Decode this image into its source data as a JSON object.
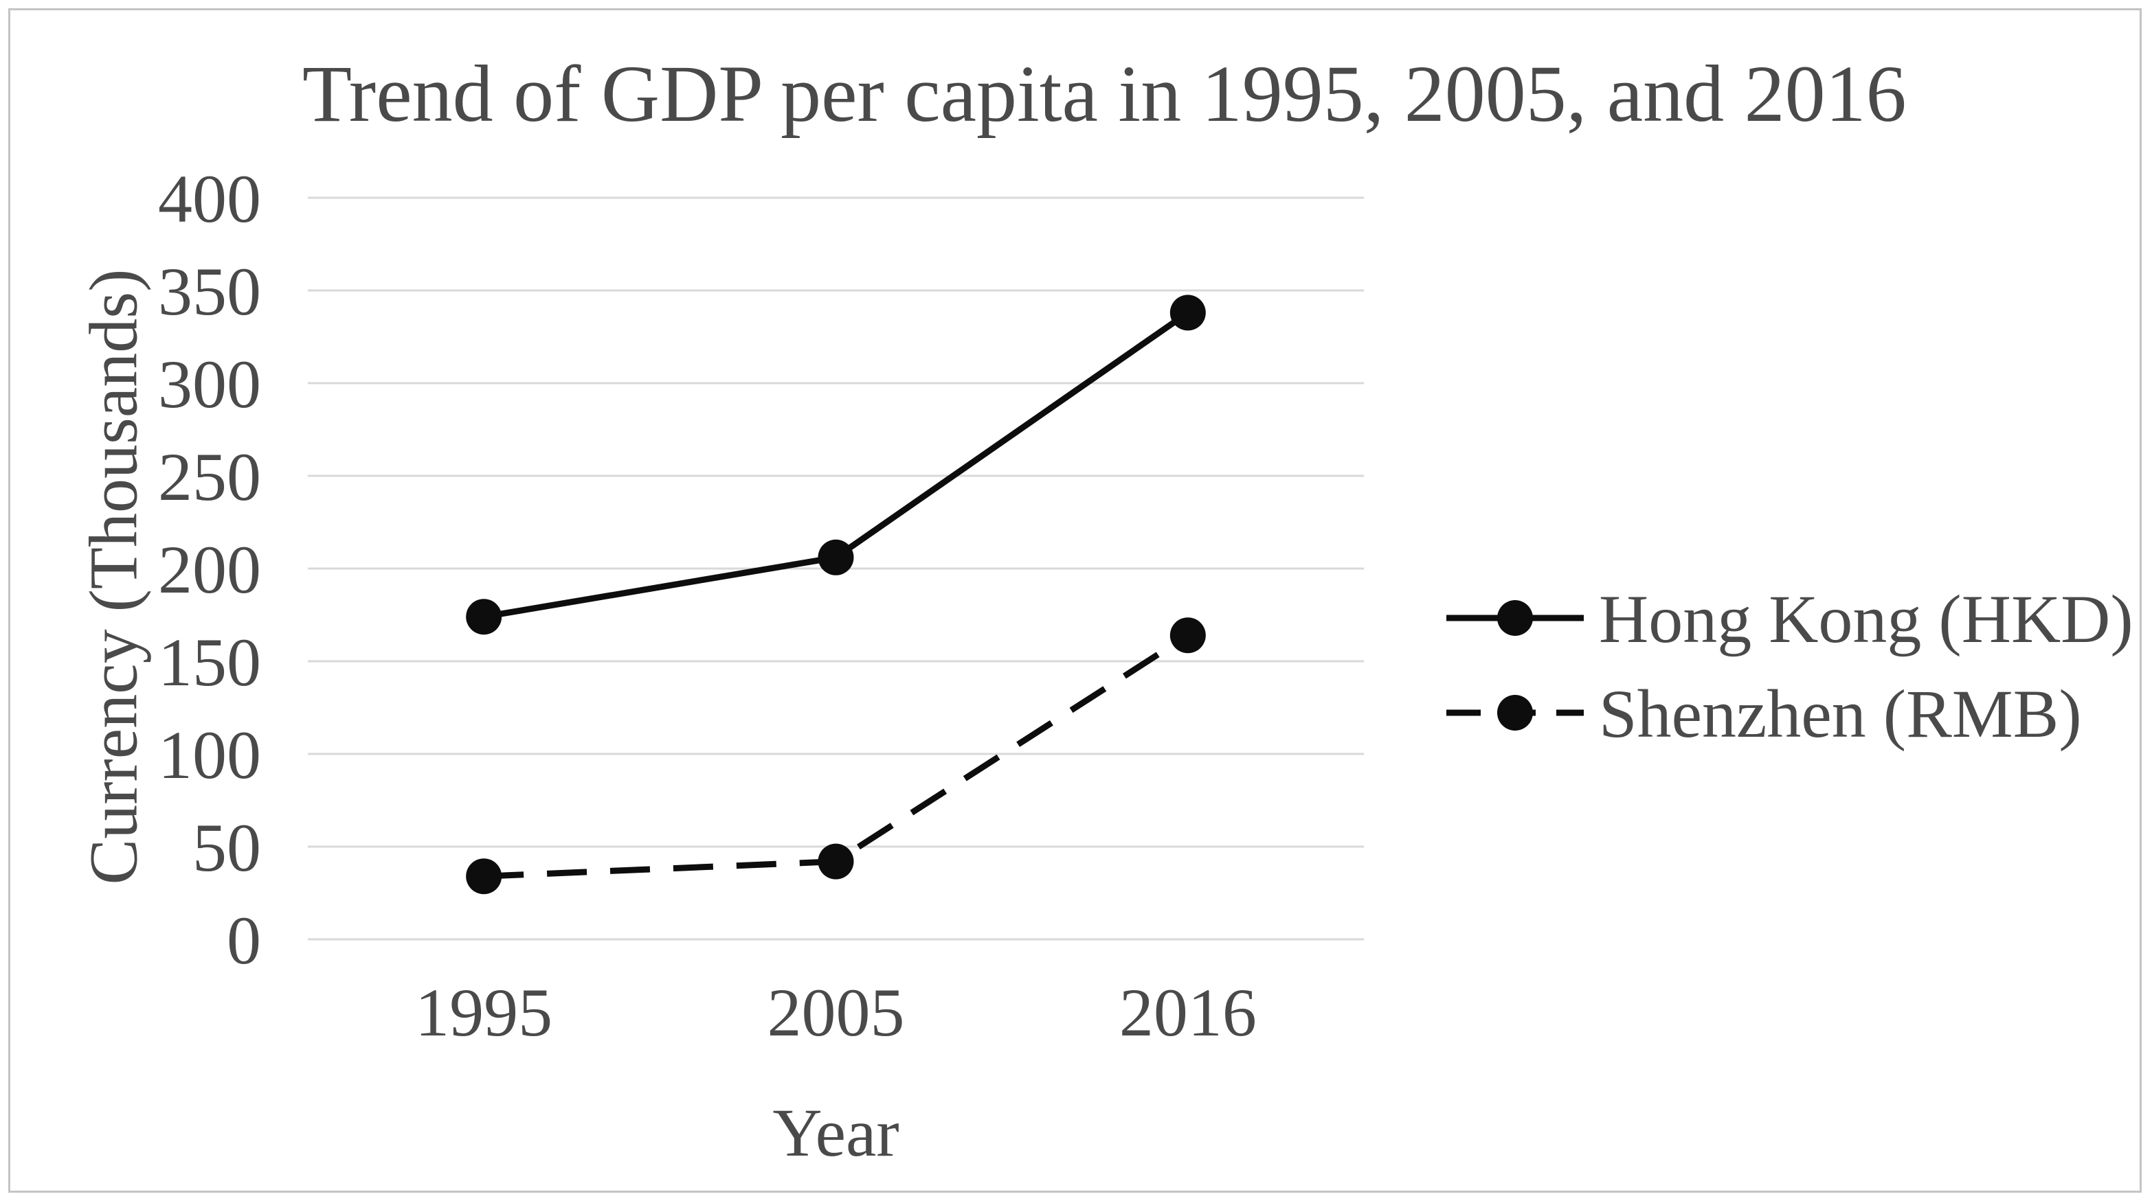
{
  "title": "Trend of GDP per capita in 1995, 2005, and 2016",
  "colors": {
    "series": "#0d0d0d",
    "grid": "#d9d9d9",
    "text": "#4a4a4a",
    "frame": "#c4c4c4",
    "background": "#ffffff"
  },
  "chart_data": {
    "type": "line",
    "title": "Trend of GDP per capita in 1995, 2005, and 2016",
    "xlabel": "Year",
    "ylabel": "Currency (Thousands)",
    "categories": [
      "1995",
      "2005",
      "2016"
    ],
    "series": [
      {
        "name": "Hong Kong (HKD)",
        "values": [
          174,
          206,
          338
        ],
        "line_style": "solid",
        "marker": "filled-circle"
      },
      {
        "name": "Shenzhen (RMB)",
        "values": [
          34,
          42,
          164
        ],
        "line_style": "dashed",
        "marker": "filled-circle"
      }
    ],
    "ylim": [
      0,
      400
    ],
    "yticks": [
      0,
      50,
      100,
      150,
      200,
      250,
      300,
      350,
      400
    ],
    "grid": "horizontal",
    "legend_position": "right"
  }
}
